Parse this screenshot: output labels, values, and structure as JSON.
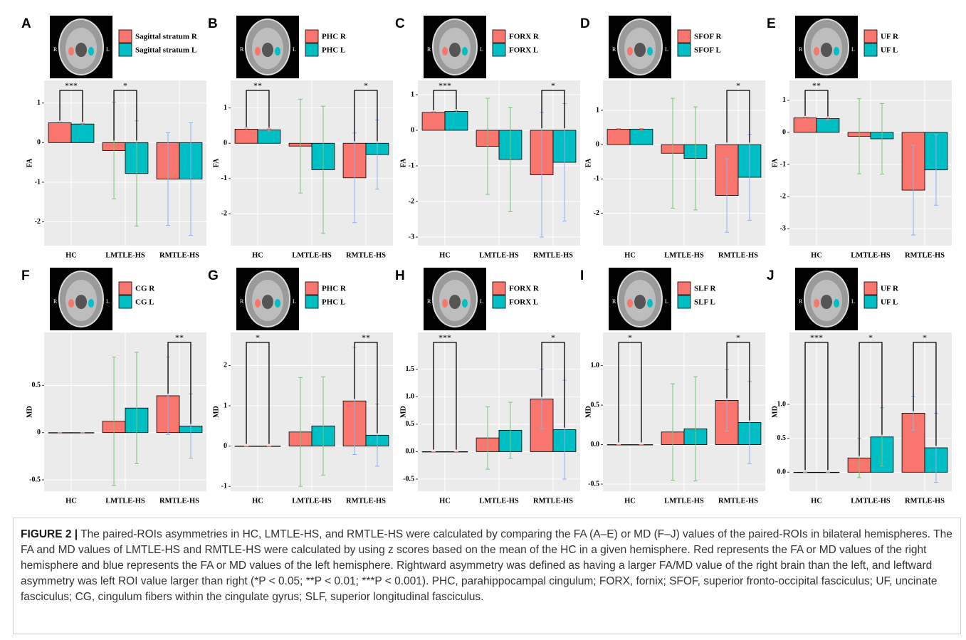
{
  "chart_data": [
    {
      "type": "bar",
      "label": "A",
      "ylabel": "FA",
      "categories": [
        "HC",
        "LMTLE-HS",
        "RMTLE-HS"
      ],
      "ylim": [
        -2.6,
        1.57
      ],
      "yticks": [
        -2,
        -1,
        0,
        1
      ],
      "series": [
        {
          "name": "Sagittal stratum R",
          "color": "#f8766d",
          "values": [
            0.5,
            -0.2,
            -0.92
          ],
          "errors": [
            0.02,
            1.22,
            1.17
          ]
        },
        {
          "name": "Sagittal stratum L",
          "color": "#00bfc4",
          "values": [
            0.47,
            -0.78,
            -0.92
          ],
          "errors": [
            0.02,
            1.33,
            1.42
          ]
        }
      ],
      "annotations": [
        {
          "category": 0,
          "label": "***"
        },
        {
          "category": 1,
          "label": "*"
        }
      ]
    },
    {
      "type": "bar",
      "label": "B",
      "ylabel": "FA",
      "categories": [
        "HC",
        "LMTLE-HS",
        "RMTLE-HS"
      ],
      "ylim": [
        -2.9,
        1.78
      ],
      "yticks": [
        -2,
        -1,
        0,
        1
      ],
      "series": [
        {
          "name": "PHC R",
          "color": "#f8766d",
          "values": [
            0.4,
            -0.08,
            -0.98
          ],
          "errors": [
            0.03,
            1.33,
            1.27
          ]
        },
        {
          "name": "PHC L",
          "color": "#00bfc4",
          "values": [
            0.38,
            -0.75,
            -0.32
          ],
          "errors": [
            0.03,
            1.8,
            0.98
          ]
        }
      ],
      "annotations": [
        {
          "category": 0,
          "label": "**"
        },
        {
          "category": 2,
          "label": "*"
        }
      ]
    },
    {
      "type": "bar",
      "label": "C",
      "ylabel": "FA",
      "categories": [
        "HC",
        "LMTLE-HS",
        "RMTLE-HS"
      ],
      "ylim": [
        -3.24,
        1.4
      ],
      "yticks": [
        -3,
        -2,
        -1,
        0,
        1
      ],
      "series": [
        {
          "name": "FORX R",
          "color": "#f8766d",
          "values": [
            0.5,
            -0.45,
            -1.25
          ],
          "errors": [
            0.02,
            1.35,
            1.75
          ]
        },
        {
          "name": "FORX L",
          "color": "#00bfc4",
          "values": [
            0.53,
            -0.82,
            -0.9
          ],
          "errors": [
            0.02,
            1.47,
            1.65
          ]
        }
      ],
      "annotations": [
        {
          "category": 0,
          "label": "***"
        },
        {
          "category": 2,
          "label": "*"
        }
      ]
    },
    {
      "type": "bar",
      "label": "D",
      "ylabel": "FA",
      "categories": [
        "HC",
        "LMTLE-HS",
        "RMTLE-HS"
      ],
      "ylim": [
        -2.94,
        1.87
      ],
      "yticks": [
        -2,
        -1,
        0,
        1
      ],
      "series": [
        {
          "name": "SFOF R",
          "color": "#f8766d",
          "values": [
            0.45,
            -0.25,
            -1.48
          ],
          "errors": [
            0.02,
            1.6,
            1.07
          ]
        },
        {
          "name": "SFOF L",
          "color": "#00bfc4",
          "values": [
            0.45,
            -0.4,
            -0.95
          ],
          "errors": [
            0.02,
            1.5,
            1.25
          ]
        }
      ],
      "annotations": [
        {
          "category": 2,
          "label": "*"
        }
      ]
    },
    {
      "type": "bar",
      "label": "E",
      "ylabel": "FA",
      "categories": [
        "HC",
        "LMTLE-HS",
        "RMTLE-HS"
      ],
      "ylim": [
        -3.53,
        1.62
      ],
      "yticks": [
        -3,
        -2,
        -1,
        0,
        1
      ],
      "series": [
        {
          "name": "UF R",
          "color": "#f8766d",
          "values": [
            0.45,
            -0.12,
            -1.8
          ],
          "errors": [
            0.03,
            1.17,
            1.4
          ]
        },
        {
          "name": "UF L",
          "color": "#00bfc4",
          "values": [
            0.43,
            -0.2,
            -1.17
          ],
          "errors": [
            0.03,
            1.1,
            1.1
          ]
        }
      ],
      "annotations": [
        {
          "category": 0,
          "label": "**"
        }
      ]
    },
    {
      "type": "bar",
      "label": "F",
      "ylabel": "MD",
      "categories": [
        "HC",
        "LMTLE-HS",
        "RMTLE-HS"
      ],
      "ylim": [
        -0.62,
        1.06
      ],
      "yticks": [
        -0.5,
        0,
        0.5
      ],
      "series": [
        {
          "name": "CG R",
          "color": "#f8766d",
          "values": [
            0,
            0.12,
            0.39
          ],
          "errors": [
            0,
            0.68,
            0.41
          ]
        },
        {
          "name": "CG L",
          "color": "#00bfc4",
          "values": [
            0,
            0.26,
            0.07
          ],
          "errors": [
            0,
            0.59,
            0.34
          ]
        }
      ],
      "annotations": [
        {
          "category": 2,
          "label": "**"
        }
      ]
    },
    {
      "type": "bar",
      "label": "G",
      "ylabel": "MD",
      "categories": [
        "HC",
        "LMTLE-HS",
        "RMTLE-HS"
      ],
      "ylim": [
        -1.12,
        2.82
      ],
      "yticks": [
        -1,
        0,
        1,
        2
      ],
      "series": [
        {
          "name": "PHC R",
          "color": "#f8766d",
          "values": [
            0,
            0.35,
            1.12
          ],
          "errors": [
            0,
            1.35,
            1.33
          ]
        },
        {
          "name": "PHC L",
          "color": "#00bfc4",
          "values": [
            0,
            0.5,
            0.27
          ],
          "errors": [
            0,
            1.22,
            0.77
          ]
        }
      ],
      "annotations": [
        {
          "category": 0,
          "label": "*"
        },
        {
          "category": 2,
          "label": "**"
        }
      ]
    },
    {
      "type": "bar",
      "label": "H",
      "ylabel": "MD",
      "categories": [
        "HC",
        "LMTLE-HS",
        "RMTLE-HS"
      ],
      "ylim": [
        -0.72,
        2.17
      ],
      "yticks": [
        -0.5,
        {
          "value": 0,
          "label": "0.0"
        },
        0.5,
        {
          "value": 1,
          "label": "1.0"
        },
        1.5
      ],
      "series": [
        {
          "name": "FORX R",
          "color": "#f8766d",
          "values": [
            0,
            0.25,
            0.96
          ],
          "errors": [
            0,
            0.57,
            0.54
          ]
        },
        {
          "name": "FORX L",
          "color": "#00bfc4",
          "values": [
            0,
            0.39,
            0.4
          ],
          "errors": [
            0,
            0.51,
            0.9
          ]
        }
      ],
      "annotations": [
        {
          "category": 0,
          "label": "***"
        },
        {
          "category": 2,
          "label": "*"
        }
      ]
    },
    {
      "type": "bar",
      "label": "I",
      "ylabel": "MD",
      "categories": [
        "HC",
        "LMTLE-HS",
        "RMTLE-HS"
      ],
      "ylim": [
        -0.59,
        1.42
      ],
      "yticks": [
        -0.5,
        {
          "value": 0,
          "label": "0.0"
        },
        0.5,
        {
          "value": 1,
          "label": "1.0"
        }
      ],
      "series": [
        {
          "name": "SLF R",
          "color": "#f8766d",
          "values": [
            0,
            0.16,
            0.56
          ],
          "errors": [
            0,
            0.61,
            0.39
          ]
        },
        {
          "name": "SLF L",
          "color": "#00bfc4",
          "values": [
            0,
            0.2,
            0.28
          ],
          "errors": [
            0,
            0.66,
            0.52
          ]
        }
      ],
      "annotations": [
        {
          "category": 0,
          "label": "*"
        },
        {
          "category": 2,
          "label": "*"
        }
      ]
    },
    {
      "type": "bar",
      "label": "J",
      "ylabel": "MD",
      "categories": [
        "HC",
        "LMTLE-HS",
        "RMTLE-HS"
      ],
      "ylim": [
        -0.28,
        2.06
      ],
      "yticks": [
        {
          "value": 0,
          "label": "0.0"
        },
        0.5,
        {
          "value": 1,
          "label": "1.0"
        }
      ],
      "series": [
        {
          "name": "UF R",
          "color": "#f8766d",
          "values": [
            0,
            0.21,
            0.87
          ],
          "errors": [
            0,
            0.29,
            0.25
          ]
        },
        {
          "name": "UF L",
          "color": "#00bfc4",
          "values": [
            0,
            0.52,
            0.36
          ],
          "errors": [
            0,
            0.43,
            0.51
          ]
        }
      ],
      "annotations": [
        {
          "category": 0,
          "label": "***"
        },
        {
          "category": 1,
          "label": "*"
        },
        {
          "category": 2,
          "label": "*"
        }
      ]
    }
  ],
  "error_colors": [
    "#e88a84",
    "#7cc47c",
    "#8fb0f0"
  ],
  "brain_labels": [
    "R",
    "L"
  ],
  "caption": {
    "label": "FIGURE 2 |",
    "text": "The paired-ROIs asymmetries in HC, LMTLE-HS, and RMTLE-HS were calculated by comparing the FA (A–E) or MD (F–J) values of the paired-ROIs in bilateral hemispheres. The FA and MD values of LMTLE-HS and RMTLE-HS were calculated by using z scores based on the mean of the HC in a given hemisphere. Red represents the FA or MD values of the right hemisphere and blue represents the FA or MD values of the left hemisphere. Rightward asymmetry was defined as having a larger FA/MD value of the right brain than the left, and leftward asymmetry was left ROI value larger than right (*P < 0.05; **P < 0.01; ***P < 0.001). PHC, parahippocampal cingulum; FORX, fornix; SFOF, superior fronto-occipital fasciculus; UF, uncinate fasciculus; CG, cingulum fibers within the cingulate gyrus; SLF, superior longitudinal fasciculus."
  }
}
